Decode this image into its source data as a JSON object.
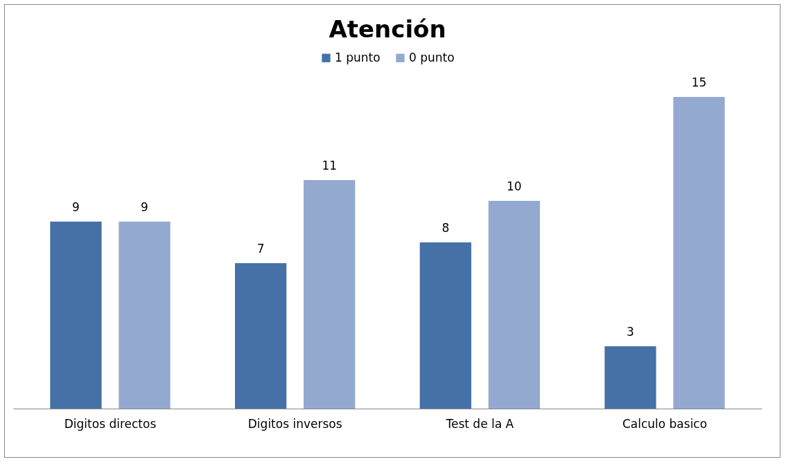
{
  "chart_data": {
    "type": "bar",
    "title": "Atención",
    "categories": [
      "Digitos directos",
      "Digitos inversos",
      "Test de la A",
      "Calculo basico"
    ],
    "series": [
      {
        "name": "1 punto",
        "color": "#4571a6",
        "values": [
          9,
          7,
          8,
          3
        ]
      },
      {
        "name": "0 punto",
        "color": "#93a9d0",
        "values": [
          9,
          11,
          10,
          15
        ]
      }
    ],
    "data_labels": true,
    "legend": "top",
    "tick_labels": "x"
  }
}
